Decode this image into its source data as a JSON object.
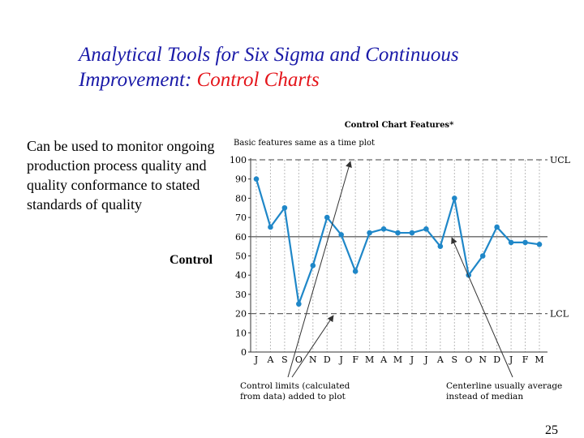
{
  "slide": {
    "title_prefix": "Analytical Tools for Six Sigma and Continuous Improvement: ",
    "title_highlight": "Control Charts",
    "body_text": "Can be used to monitor ongoing production process quality and quality conformance to stated standards of quality",
    "side_label": "Control",
    "page_number": "25"
  },
  "colors": {
    "title_blue": "#1a1aa8",
    "title_red": "#e4151b",
    "series": "#1f87c8"
  },
  "chart_data": {
    "type": "line",
    "title": "Control Chart Features*",
    "subtitle": "Basic features same as a time plot",
    "categories": [
      "J",
      "A",
      "S",
      "O",
      "N",
      "D",
      "J",
      "F",
      "M",
      "A",
      "M",
      "J",
      "J",
      "A",
      "S",
      "O",
      "N",
      "D",
      "J",
      "F",
      "M"
    ],
    "values": [
      90,
      65,
      75,
      25,
      45,
      70,
      61,
      42,
      62,
      64,
      62,
      62,
      64,
      55,
      80,
      40,
      50,
      65,
      57,
      57,
      56
    ],
    "ylim": [
      0,
      100
    ],
    "yticks": [
      0,
      10,
      20,
      30,
      40,
      50,
      60,
      70,
      80,
      90,
      100
    ],
    "ucl": 100,
    "centerline": 60,
    "lcl": 20,
    "ucl_label": "UCL",
    "lcl_label": "LCL",
    "grid": true,
    "annotations": [
      {
        "text": "Control limits (calculated",
        "text2": "from data) added to plot"
      },
      {
        "text": "Centerline usually average",
        "text2": "instead of median"
      }
    ]
  }
}
